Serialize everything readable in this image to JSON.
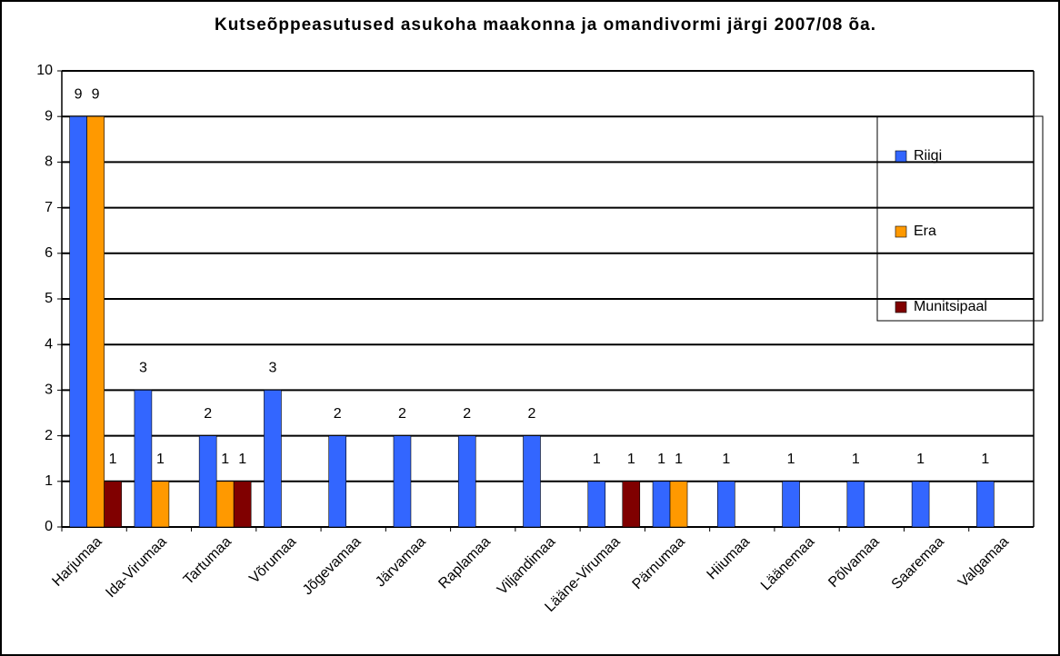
{
  "chart_data": {
    "type": "bar",
    "title": "Kutseõppeasutused asukoha maakonna ja omandivormi järgi 2007/08 õa.",
    "categories": [
      "Harjumaa",
      "Ida-Virumaa",
      "Tartumaa",
      "Võrumaa",
      "Jõgevamaa",
      "Järvamaa",
      "Raplamaa",
      "Viljandimaa",
      "Lääne-Virumaa",
      "Pärnumaa",
      "Hiiumaa",
      "Läänemaa",
      "Põlvamaa",
      "Saaremaa",
      "Valgamaa"
    ],
    "series": [
      {
        "name": "Riigi",
        "color": "#3366ff",
        "values": [
          9,
          3,
          2,
          3,
          2,
          2,
          2,
          2,
          1,
          1,
          1,
          1,
          1,
          1,
          1
        ]
      },
      {
        "name": "Era",
        "color": "#ff9900",
        "values": [
          9,
          1,
          1,
          null,
          null,
          null,
          null,
          null,
          null,
          1,
          null,
          null,
          null,
          null,
          null
        ]
      },
      {
        "name": "Munitsipaal",
        "color": "#800000",
        "values": [
          1,
          null,
          1,
          null,
          null,
          null,
          null,
          null,
          1,
          null,
          null,
          null,
          null,
          null,
          null
        ]
      }
    ],
    "ylim": [
      0,
      10
    ],
    "yticks": [
      0,
      1,
      2,
      3,
      4,
      5,
      6,
      7,
      8,
      9,
      10
    ],
    "grid": true,
    "legend": "right"
  }
}
